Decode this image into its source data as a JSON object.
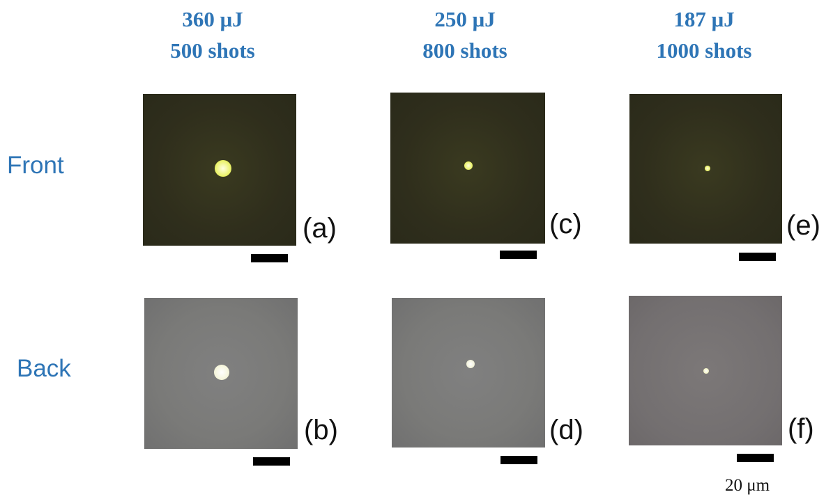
{
  "columns": [
    {
      "energy": "360 μJ",
      "shots": "500 shots"
    },
    {
      "energy": "250 μJ",
      "shots": "800 shots"
    },
    {
      "energy": "187 μJ",
      "shots": "1000 shots"
    }
  ],
  "rows": [
    "Front",
    "Back"
  ],
  "panels": [
    "(a)",
    "(b)",
    "(c)",
    "(d)",
    "(e)",
    "(f)"
  ],
  "scale_bar": "20 μm"
}
